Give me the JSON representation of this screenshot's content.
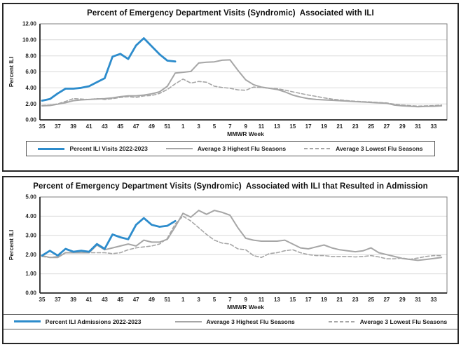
{
  "colors": {
    "series_blue": "#2D8CCC",
    "series_gray": "#A6A6A6",
    "gridline": "#D9D9D9",
    "plot_border": "#7F7F7F",
    "axis_line": "#262626"
  },
  "chart_data": [
    {
      "type": "line",
      "title": "Percent of Emergency Department Visits (Syndromic)  Associated with ILI",
      "xlabel": "MMWR Week",
      "ylabel": "Percent ILI",
      "ylim": [
        0,
        12
      ],
      "grid": true,
      "legend_position": "bottom",
      "y_tick_labels": [
        "12.00",
        "10.00",
        "8.00",
        "6.00",
        "4.00",
        "2.00",
        "0.00"
      ],
      "x_tick_labels": [
        "35",
        "37",
        "39",
        "41",
        "43",
        "45",
        "47",
        "49",
        "51",
        "1",
        "3",
        "5",
        "7",
        "9",
        "11",
        "13",
        "15",
        "17",
        "19",
        "21",
        "23",
        "25",
        "27",
        "29",
        "31",
        "33"
      ],
      "x_note": "weekly points from MMWR week 35 through week 34 of the following year",
      "series": [
        {
          "name": "Percent ILI Visits 2022-2023",
          "color": "#2D8CCC",
          "dash": false,
          "width": 2.8,
          "values": [
            2.4,
            2.6,
            3.3,
            3.9,
            3.9,
            4.0,
            4.2,
            4.7,
            5.2,
            7.9,
            8.25,
            7.6,
            9.3,
            10.2,
            9.2,
            8.2,
            7.4,
            7.3
          ]
        },
        {
          "name": "Average 3 Highest Flu Seasons",
          "color": "#A6A6A6",
          "dash": false,
          "width": 2,
          "values": [
            1.75,
            1.8,
            1.95,
            2.15,
            2.4,
            2.5,
            2.55,
            2.6,
            2.65,
            2.75,
            2.9,
            3.0,
            3.0,
            3.1,
            3.25,
            3.5,
            4.2,
            5.85,
            5.95,
            6.05,
            7.1,
            7.2,
            7.25,
            7.45,
            7.5,
            6.2,
            5.0,
            4.4,
            4.1,
            3.95,
            3.8,
            3.5,
            3.1,
            2.85,
            2.65,
            2.55,
            2.5,
            2.45,
            2.4,
            2.35,
            2.28,
            2.23,
            2.18,
            2.12,
            2.08,
            1.85,
            1.75,
            1.7,
            1.65,
            1.68,
            1.7,
            1.75
          ]
        },
        {
          "name": "Average 3 Lowest Flu Seasons",
          "color": "#A6A6A6",
          "dash": true,
          "width": 1.6,
          "values": [
            1.8,
            1.85,
            2.0,
            2.3,
            2.65,
            2.6,
            2.55,
            2.65,
            2.55,
            2.65,
            2.8,
            2.9,
            2.8,
            3.0,
            3.05,
            3.3,
            3.8,
            4.5,
            5.1,
            4.6,
            4.8,
            4.7,
            4.2,
            4.05,
            3.95,
            3.75,
            3.7,
            4.1,
            4.05,
            3.95,
            3.9,
            3.72,
            3.5,
            3.3,
            3.1,
            2.93,
            2.75,
            2.6,
            2.5,
            2.4,
            2.33,
            2.28,
            2.23,
            2.17,
            2.12,
            1.95,
            1.85,
            1.78,
            1.72,
            1.75,
            1.78,
            1.85
          ]
        }
      ]
    },
    {
      "type": "line",
      "title": "Percent of Emergency Department Visits (Syndromic)  Associated with ILI that Resulted in Admission",
      "xlabel": "MMWR Week",
      "ylabel": "Percent ILI",
      "ylim": [
        0,
        5
      ],
      "grid": true,
      "legend_position": "bottom",
      "y_tick_labels": [
        "5.00",
        "4.00",
        "3.00",
        "2.00",
        "1.00",
        "0.00"
      ],
      "x_tick_labels": [
        "35",
        "37",
        "39",
        "41",
        "43",
        "45",
        "47",
        "49",
        "51",
        "1",
        "3",
        "5",
        "7",
        "9",
        "11",
        "13",
        "15",
        "17",
        "19",
        "21",
        "23",
        "25",
        "27",
        "29",
        "31",
        "33"
      ],
      "x_note": "weekly points from MMWR week 35 through week 34 of the following year",
      "series": [
        {
          "name": "Percent ILI Admissions 2022-2023",
          "color": "#2D8CCC",
          "dash": false,
          "width": 2.8,
          "values": [
            1.95,
            2.2,
            1.95,
            2.3,
            2.15,
            2.2,
            2.15,
            2.55,
            2.3,
            3.05,
            2.9,
            2.8,
            3.55,
            3.9,
            3.55,
            3.45,
            3.5,
            3.75
          ]
        },
        {
          "name": "Average 3 Highest Flu Seasons",
          "color": "#A6A6A6",
          "dash": false,
          "width": 2,
          "values": [
            1.95,
            1.85,
            1.85,
            2.1,
            2.1,
            2.1,
            2.1,
            2.5,
            2.25,
            2.35,
            2.45,
            2.55,
            2.45,
            2.75,
            2.65,
            2.65,
            2.8,
            3.45,
            4.15,
            3.95,
            4.3,
            4.1,
            4.3,
            4.2,
            4.05,
            3.4,
            2.85,
            2.75,
            2.7,
            2.7,
            2.7,
            2.75,
            2.55,
            2.35,
            2.3,
            2.4,
            2.5,
            2.35,
            2.25,
            2.2,
            2.15,
            2.2,
            2.35,
            2.1,
            2.0,
            1.9,
            1.8,
            1.75,
            1.7,
            1.75,
            1.8,
            1.85
          ]
        },
        {
          "name": "Average 3 Lowest Flu Seasons",
          "color": "#A6A6A6",
          "dash": true,
          "width": 1.6,
          "values": [
            1.9,
            1.85,
            1.9,
            2.1,
            2.1,
            2.1,
            2.1,
            2.1,
            2.1,
            2.05,
            2.1,
            2.25,
            2.35,
            2.4,
            2.45,
            2.55,
            2.85,
            3.6,
            4.0,
            3.75,
            3.4,
            3.05,
            2.75,
            2.6,
            2.55,
            2.3,
            2.25,
            1.95,
            1.85,
            2.05,
            2.1,
            2.2,
            2.25,
            2.1,
            2.0,
            1.95,
            1.95,
            1.9,
            1.9,
            1.9,
            1.88,
            1.9,
            1.95,
            1.88,
            1.78,
            1.78,
            1.82,
            1.76,
            1.82,
            1.9,
            1.95,
            1.95
          ]
        }
      ]
    }
  ]
}
